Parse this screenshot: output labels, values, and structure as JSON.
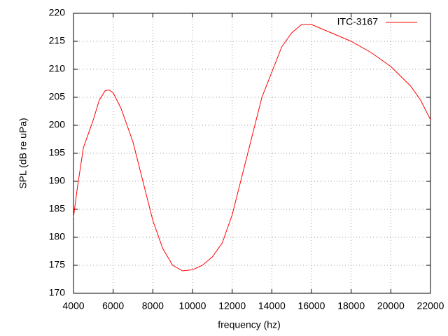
{
  "chart_data": {
    "type": "line",
    "xlabel": "frequency (hz)",
    "ylabel": "SPL (dB re uPa)",
    "x": [
      4000,
      4200,
      4500,
      5000,
      5300,
      5600,
      5800,
      6000,
      6400,
      7000,
      7500,
      8000,
      8500,
      9000,
      9500,
      10000,
      10500,
      11000,
      11500,
      12000,
      12500,
      13000,
      13500,
      14000,
      14500,
      15000,
      15500,
      16000,
      17000,
      18000,
      19000,
      20000,
      21000,
      21500,
      22000
    ],
    "series": [
      {
        "name": "ITC-3167",
        "color": "#ff0000",
        "values": [
          183.6,
          189,
          196,
          201,
          204.5,
          206.2,
          206.3,
          205.8,
          203,
          197,
          190,
          183,
          178,
          175,
          174,
          174.2,
          175,
          176.5,
          179,
          184,
          191,
          198,
          205,
          209.5,
          214,
          216.5,
          218,
          218,
          216.5,
          215,
          213,
          210.5,
          207,
          204.5,
          201
        ]
      }
    ],
    "xlim": [
      4000,
      22000
    ],
    "xticks": [
      4000,
      6000,
      8000,
      10000,
      12000,
      14000,
      16000,
      18000,
      20000,
      22000
    ],
    "ylim": [
      170,
      220
    ],
    "yticks": [
      170,
      175,
      180,
      185,
      190,
      195,
      200,
      205,
      210,
      215,
      220
    ],
    "grid": true,
    "legend": "top-right"
  }
}
